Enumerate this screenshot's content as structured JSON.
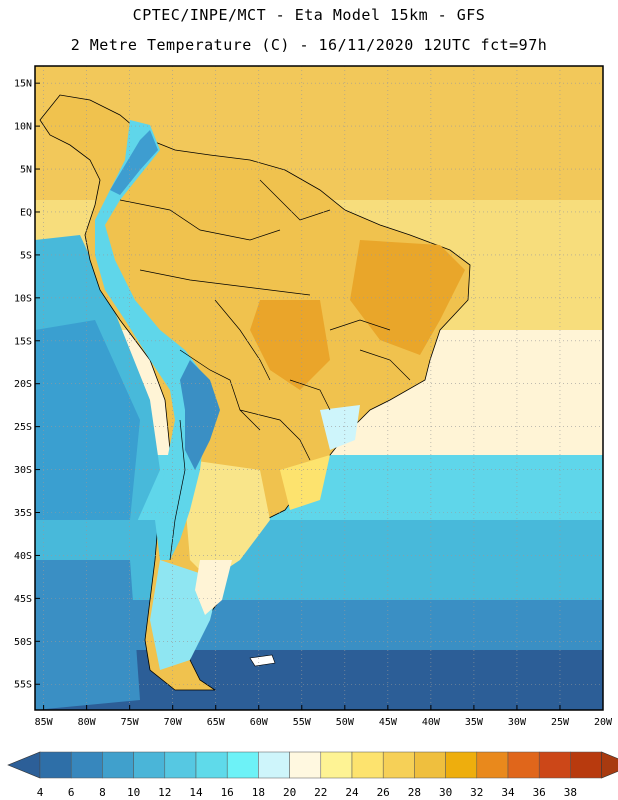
{
  "header": {
    "line1": "CPTEC/INPE/MCT -  Eta Model 15km - GFS",
    "line2": "2 Metre Temperature (C) - 16/11/2020 12UTC fct=97h"
  },
  "axes": {
    "lat_labels": [
      "15N",
      "10N",
      "5N",
      "EQ",
      "5S",
      "10S",
      "15S",
      "20S",
      "25S",
      "30S",
      "35S",
      "40S",
      "45S",
      "50S",
      "55S"
    ],
    "lon_labels": [
      "85W",
      "80W",
      "75W",
      "70W",
      "65W",
      "60W",
      "55W",
      "50W",
      "45W",
      "40W",
      "35W",
      "30W",
      "25W",
      "20W"
    ],
    "lat_values": [
      15,
      10,
      5,
      0,
      -5,
      -10,
      -15,
      -20,
      -25,
      -30,
      -35,
      -40,
      -45,
      -50,
      -55
    ],
    "lon_values": [
      -85,
      -80,
      -75,
      -70,
      -65,
      -60,
      -55,
      -50,
      -45,
      -40,
      -35,
      -30,
      -25,
      -20
    ],
    "lat_range": [
      -58,
      17
    ],
    "lon_range": [
      -86,
      -20
    ],
    "grid": "dotted"
  },
  "colorbar": {
    "ticks": [
      "4",
      "6",
      "8",
      "10",
      "12",
      "14",
      "16",
      "18",
      "20",
      "22",
      "24",
      "26",
      "28",
      "30",
      "32",
      "34",
      "36",
      "38"
    ],
    "colors": [
      "#2e6fa8",
      "#3787bd",
      "#40a0cc",
      "#4ab5d8",
      "#56c8e2",
      "#5fdaea",
      "#6df2f7",
      "#cef5fb",
      "#fff8e0",
      "#fef394",
      "#fde36e",
      "#f6d057",
      "#efbf3e",
      "#eeae0d",
      "#e9891c",
      "#e0661b",
      "#cc4718",
      "#b83a0e"
    ],
    "under_color": "#2c5f98",
    "over_color": "#a83a10"
  },
  "map": {
    "ocean_cold": "#2c5e97",
    "ocean_cool": "#3a8fc4",
    "ocean_mid": "#48b9da",
    "ocean_warm": "#5fd6ea",
    "ocean_pale": "#fff4d6",
    "ocean_tropic": "#f5d36a",
    "land_hot": "#e9b033",
    "land_warm": "#f0c24e",
    "land_mild": "#f9e58a",
    "andes": "#3e8cc0",
    "border": "#000000"
  }
}
